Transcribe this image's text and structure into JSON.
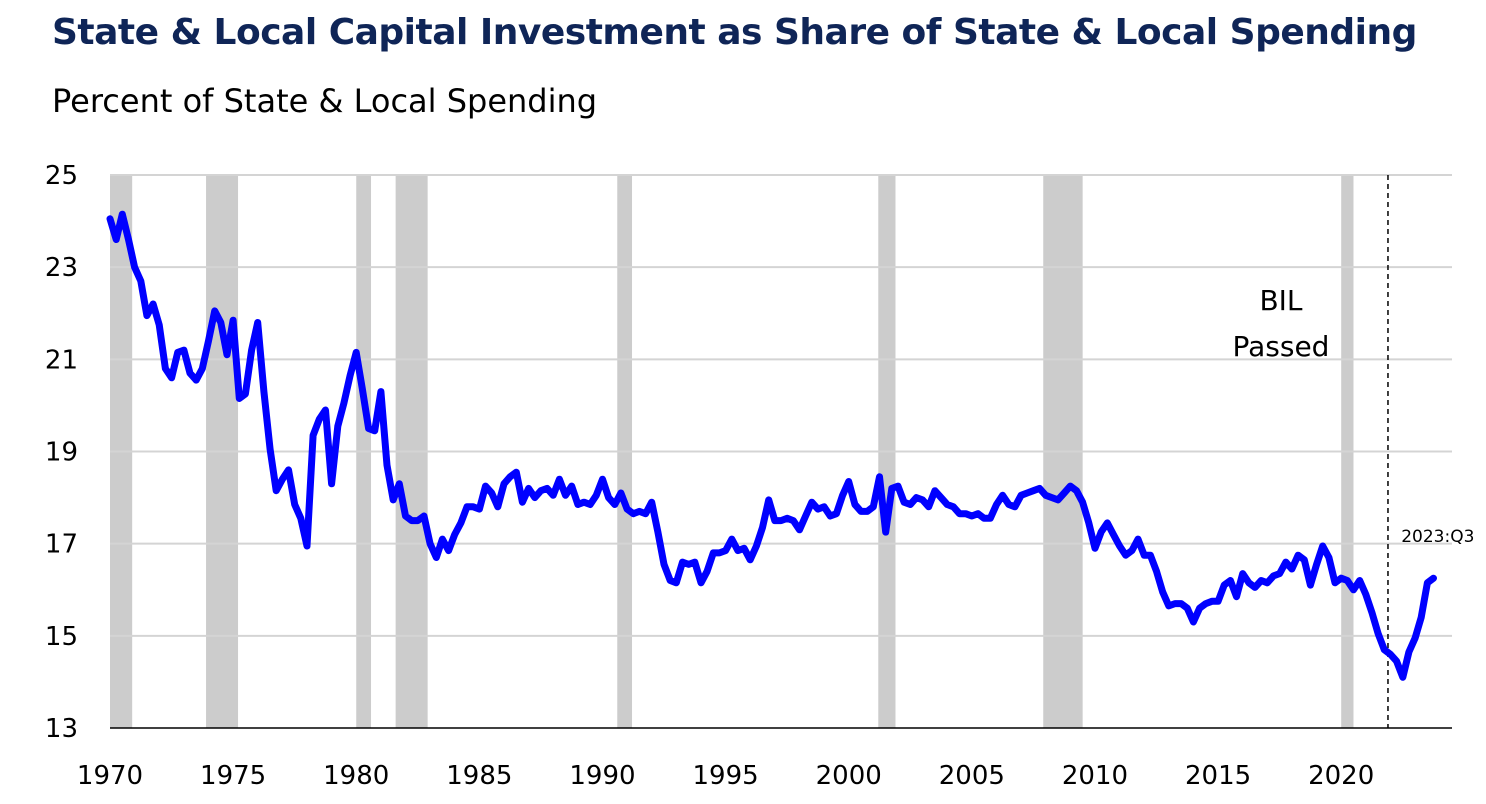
{
  "chart_data": {
    "type": "line",
    "title": "State & Local Capital Investment as Share of State & Local Spending",
    "subtitle": "Percent of State & Local Spending",
    "ylim": [
      13,
      25
    ],
    "xlim": [
      1970.0,
      2024.5
    ],
    "yticks": [
      13,
      15,
      17,
      19,
      21,
      23,
      25
    ],
    "xticks": [
      1970,
      1975,
      1980,
      1985,
      1990,
      1995,
      2000,
      2005,
      2010,
      2015,
      2020
    ],
    "grid": "horizontal",
    "line_color": "#0000ff",
    "recession_color": "#cccccc",
    "recessions": [
      [
        1970.0,
        1970.9
      ],
      [
        1973.9,
        1975.2
      ],
      [
        1980.0,
        1980.6
      ],
      [
        1981.6,
        1982.9
      ],
      [
        1990.6,
        1991.2
      ],
      [
        2001.2,
        2001.9
      ],
      [
        2007.9,
        2009.5
      ],
      [
        2020.0,
        2020.5
      ]
    ],
    "annotations": [
      {
        "lines": [
          "BIL",
          "Passed"
        ],
        "x": 2021.9,
        "type": "vertical-dashed-line"
      },
      {
        "text": "2023:Q3",
        "x": 2023.6,
        "y": 16.25
      }
    ],
    "series": [
      {
        "points": [
          [
            1970.0,
            24.05
          ],
          [
            1970.25,
            23.6
          ],
          [
            1970.5,
            24.15
          ],
          [
            1970.75,
            23.6
          ],
          [
            1971.0,
            23.0
          ],
          [
            1971.25,
            22.7
          ],
          [
            1971.5,
            21.95
          ],
          [
            1971.75,
            22.2
          ],
          [
            1972.0,
            21.75
          ],
          [
            1972.25,
            20.8
          ],
          [
            1972.5,
            20.6
          ],
          [
            1972.75,
            21.15
          ],
          [
            1973.0,
            21.2
          ],
          [
            1973.25,
            20.7
          ],
          [
            1973.5,
            20.55
          ],
          [
            1973.75,
            20.8
          ],
          [
            1974.0,
            21.4
          ],
          [
            1974.25,
            22.05
          ],
          [
            1974.5,
            21.8
          ],
          [
            1974.75,
            21.1
          ],
          [
            1975.0,
            21.85
          ],
          [
            1975.25,
            20.15
          ],
          [
            1975.5,
            20.25
          ],
          [
            1975.75,
            21.2
          ],
          [
            1976.0,
            21.8
          ],
          [
            1976.25,
            20.3
          ],
          [
            1976.5,
            19.05
          ],
          [
            1976.75,
            18.15
          ],
          [
            1977.0,
            18.4
          ],
          [
            1977.25,
            18.6
          ],
          [
            1977.5,
            17.85
          ],
          [
            1977.75,
            17.55
          ],
          [
            1978.0,
            16.95
          ],
          [
            1978.25,
            19.35
          ],
          [
            1978.5,
            19.7
          ],
          [
            1978.75,
            19.9
          ],
          [
            1979.0,
            18.3
          ],
          [
            1979.25,
            19.55
          ],
          [
            1979.5,
            20.05
          ],
          [
            1979.75,
            20.65
          ],
          [
            1980.0,
            21.15
          ],
          [
            1980.25,
            20.35
          ],
          [
            1980.5,
            19.5
          ],
          [
            1980.75,
            19.45
          ],
          [
            1981.0,
            20.3
          ],
          [
            1981.25,
            18.7
          ],
          [
            1981.5,
            17.95
          ],
          [
            1981.75,
            18.3
          ],
          [
            1982.0,
            17.6
          ],
          [
            1982.25,
            17.5
          ],
          [
            1982.5,
            17.5
          ],
          [
            1982.75,
            17.6
          ],
          [
            1983.0,
            17.0
          ],
          [
            1983.25,
            16.7
          ],
          [
            1983.5,
            17.1
          ],
          [
            1983.75,
            16.85
          ],
          [
            1984.0,
            17.2
          ],
          [
            1984.25,
            17.45
          ],
          [
            1984.5,
            17.8
          ],
          [
            1984.75,
            17.8
          ],
          [
            1985.0,
            17.75
          ],
          [
            1985.25,
            18.25
          ],
          [
            1985.5,
            18.1
          ],
          [
            1985.75,
            17.8
          ],
          [
            1986.0,
            18.3
          ],
          [
            1986.25,
            18.45
          ],
          [
            1986.5,
            18.55
          ],
          [
            1986.75,
            17.9
          ],
          [
            1987.0,
            18.2
          ],
          [
            1987.25,
            18.0
          ],
          [
            1987.5,
            18.15
          ],
          [
            1987.75,
            18.2
          ],
          [
            1988.0,
            18.05
          ],
          [
            1988.25,
            18.4
          ],
          [
            1988.5,
            18.05
          ],
          [
            1988.75,
            18.25
          ],
          [
            1989.0,
            17.85
          ],
          [
            1989.25,
            17.9
          ],
          [
            1989.5,
            17.85
          ],
          [
            1989.75,
            18.05
          ],
          [
            1990.0,
            18.4
          ],
          [
            1990.25,
            18.0
          ],
          [
            1990.5,
            17.85
          ],
          [
            1990.75,
            18.1
          ],
          [
            1991.0,
            17.75
          ],
          [
            1991.25,
            17.65
          ],
          [
            1991.5,
            17.7
          ],
          [
            1991.75,
            17.65
          ],
          [
            1992.0,
            17.9
          ],
          [
            1992.25,
            17.25
          ],
          [
            1992.5,
            16.55
          ],
          [
            1992.75,
            16.2
          ],
          [
            1993.0,
            16.15
          ],
          [
            1993.25,
            16.6
          ],
          [
            1993.5,
            16.55
          ],
          [
            1993.75,
            16.6
          ],
          [
            1994.0,
            16.15
          ],
          [
            1994.25,
            16.4
          ],
          [
            1994.5,
            16.8
          ],
          [
            1994.75,
            16.8
          ],
          [
            1995.0,
            16.85
          ],
          [
            1995.25,
            17.1
          ],
          [
            1995.5,
            16.85
          ],
          [
            1995.75,
            16.9
          ],
          [
            1996.0,
            16.65
          ],
          [
            1996.25,
            16.95
          ],
          [
            1996.5,
            17.35
          ],
          [
            1996.75,
            17.95
          ],
          [
            1997.0,
            17.5
          ],
          [
            1997.25,
            17.5
          ],
          [
            1997.5,
            17.55
          ],
          [
            1997.75,
            17.5
          ],
          [
            1998.0,
            17.3
          ],
          [
            1998.25,
            17.6
          ],
          [
            1998.5,
            17.9
          ],
          [
            1998.75,
            17.75
          ],
          [
            1999.0,
            17.8
          ],
          [
            1999.25,
            17.6
          ],
          [
            1999.5,
            17.65
          ],
          [
            1999.75,
            18.05
          ],
          [
            2000.0,
            18.35
          ],
          [
            2000.25,
            17.85
          ],
          [
            2000.5,
            17.7
          ],
          [
            2000.75,
            17.7
          ],
          [
            2001.0,
            17.8
          ],
          [
            2001.25,
            18.45
          ],
          [
            2001.5,
            17.25
          ],
          [
            2001.75,
            18.2
          ],
          [
            2002.0,
            18.25
          ],
          [
            2002.25,
            17.9
          ],
          [
            2002.5,
            17.85
          ],
          [
            2002.75,
            18.0
          ],
          [
            2003.0,
            17.95
          ],
          [
            2003.25,
            17.8
          ],
          [
            2003.5,
            18.15
          ],
          [
            2003.75,
            18.0
          ],
          [
            2004.0,
            17.85
          ],
          [
            2004.25,
            17.8
          ],
          [
            2004.5,
            17.65
          ],
          [
            2004.75,
            17.65
          ],
          [
            2005.0,
            17.6
          ],
          [
            2005.25,
            17.65
          ],
          [
            2005.5,
            17.55
          ],
          [
            2005.75,
            17.55
          ],
          [
            2006.0,
            17.85
          ],
          [
            2006.25,
            18.05
          ],
          [
            2006.5,
            17.85
          ],
          [
            2006.75,
            17.8
          ],
          [
            2007.0,
            18.05
          ],
          [
            2007.25,
            18.1
          ],
          [
            2007.5,
            18.15
          ],
          [
            2007.75,
            18.2
          ],
          [
            2008.0,
            18.05
          ],
          [
            2008.25,
            18.0
          ],
          [
            2008.5,
            17.95
          ],
          [
            2008.75,
            18.1
          ],
          [
            2009.0,
            18.25
          ],
          [
            2009.25,
            18.15
          ],
          [
            2009.5,
            17.9
          ],
          [
            2009.75,
            17.45
          ],
          [
            2010.0,
            16.9
          ],
          [
            2010.25,
            17.25
          ],
          [
            2010.5,
            17.45
          ],
          [
            2010.75,
            17.2
          ],
          [
            2011.0,
            16.95
          ],
          [
            2011.25,
            16.75
          ],
          [
            2011.5,
            16.85
          ],
          [
            2011.75,
            17.1
          ],
          [
            2012.0,
            16.75
          ],
          [
            2012.25,
            16.75
          ],
          [
            2012.5,
            16.4
          ],
          [
            2012.75,
            15.95
          ],
          [
            2013.0,
            15.65
          ],
          [
            2013.25,
            15.7
          ],
          [
            2013.5,
            15.7
          ],
          [
            2013.75,
            15.6
          ],
          [
            2014.0,
            15.3
          ],
          [
            2014.25,
            15.6
          ],
          [
            2014.5,
            15.7
          ],
          [
            2014.75,
            15.75
          ],
          [
            2015.0,
            15.75
          ],
          [
            2015.25,
            16.1
          ],
          [
            2015.5,
            16.2
          ],
          [
            2015.75,
            15.85
          ],
          [
            2016.0,
            16.35
          ],
          [
            2016.25,
            16.15
          ],
          [
            2016.5,
            16.05
          ],
          [
            2016.75,
            16.2
          ],
          [
            2017.0,
            16.15
          ],
          [
            2017.25,
            16.3
          ],
          [
            2017.5,
            16.35
          ],
          [
            2017.75,
            16.6
          ],
          [
            2018.0,
            16.45
          ],
          [
            2018.25,
            16.75
          ],
          [
            2018.5,
            16.65
          ],
          [
            2018.75,
            16.1
          ],
          [
            2019.0,
            16.55
          ],
          [
            2019.25,
            16.95
          ],
          [
            2019.5,
            16.7
          ],
          [
            2019.75,
            16.15
          ],
          [
            2020.0,
            16.25
          ],
          [
            2020.25,
            16.2
          ],
          [
            2020.5,
            16.0
          ],
          [
            2020.75,
            16.2
          ],
          [
            2021.0,
            15.9
          ],
          [
            2021.25,
            15.5
          ],
          [
            2021.5,
            15.05
          ],
          [
            2021.75,
            14.7
          ],
          [
            2022.0,
            14.6
          ],
          [
            2022.25,
            14.45
          ],
          [
            2022.5,
            14.1
          ],
          [
            2022.75,
            14.65
          ],
          [
            2023.0,
            14.95
          ],
          [
            2023.25,
            15.4
          ],
          [
            2023.5,
            16.15
          ],
          [
            2023.75,
            16.25
          ]
        ]
      }
    ]
  }
}
